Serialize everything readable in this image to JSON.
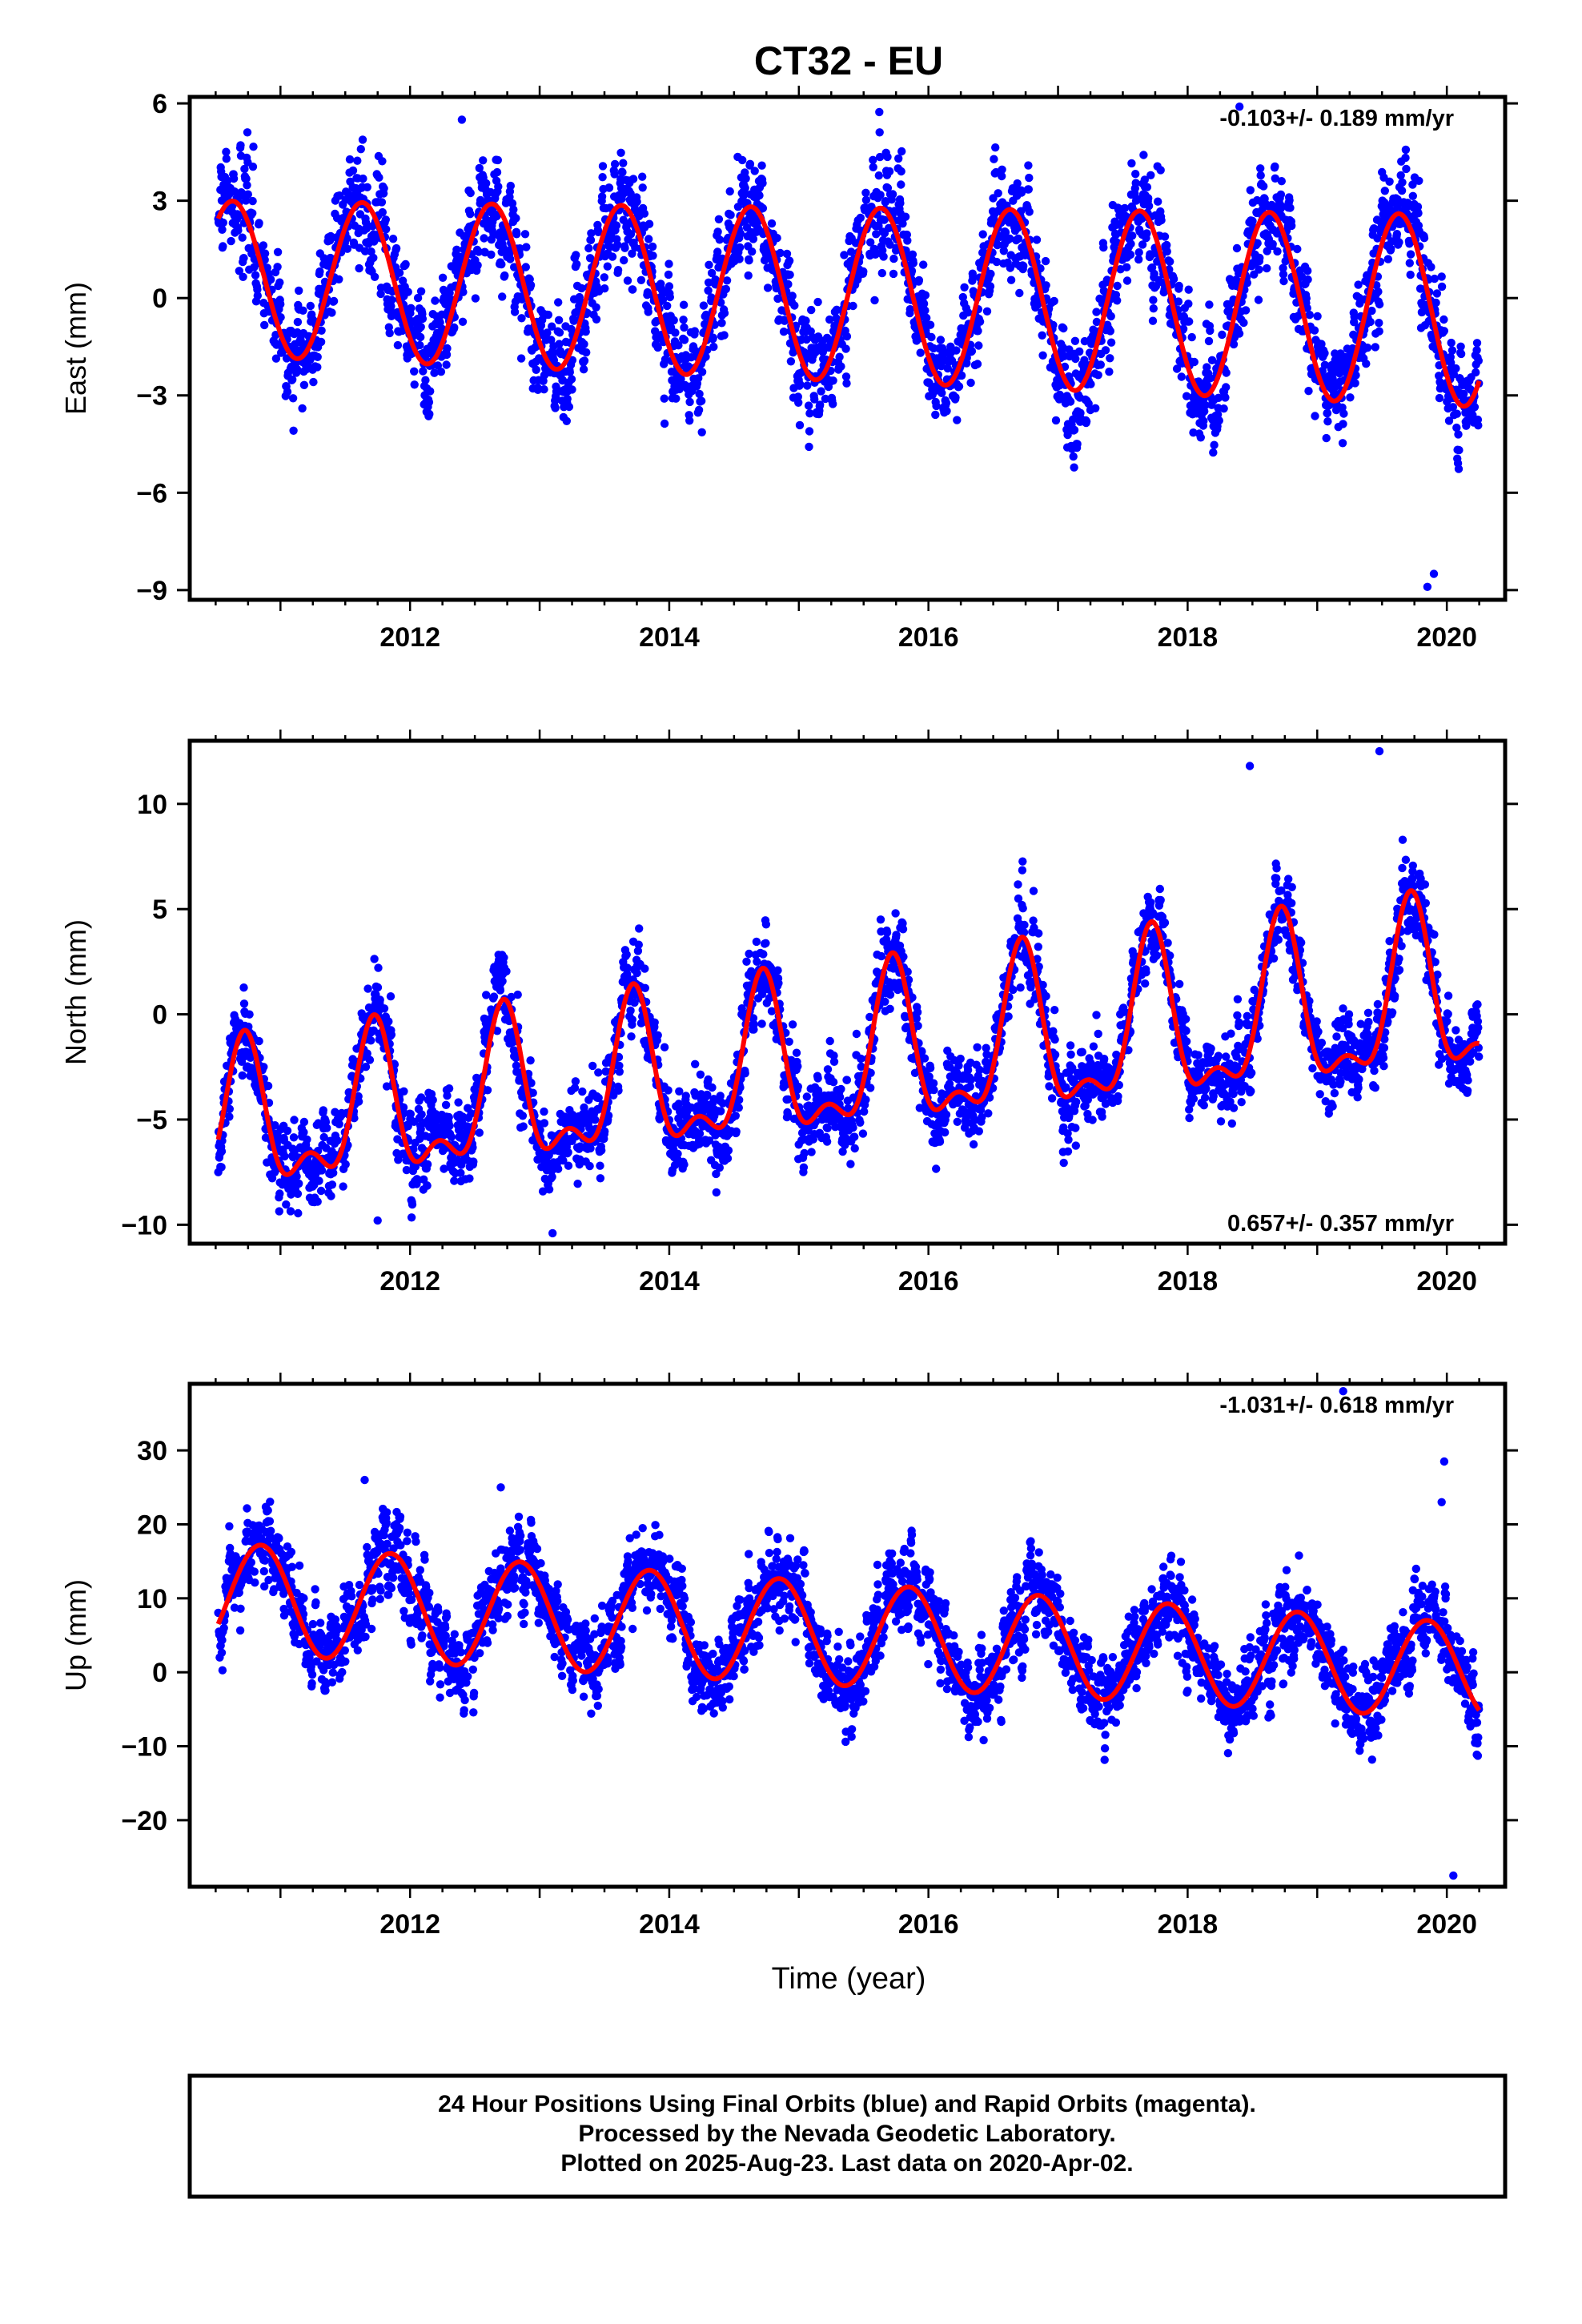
{
  "title": "CT32 - EU",
  "xlabel": "Time (year)",
  "caption": [
    "24 Hour Positions Using Final Orbits (blue) and Rapid Orbits (magenta).",
    "Processed by the Nevada Geodetic Laboratory.",
    "Plotted on 2025-Aug-23. Last data on 2020-Apr-02."
  ],
  "colors": {
    "points": "#0000ff",
    "model": "#ff0000",
    "frame": "#000000"
  },
  "chart_data": [
    {
      "type": "scatter",
      "panel": "east",
      "ylabel": "East (mm)",
      "rate_text": "-0.103+/- 0.189 mm/yr",
      "rate_position": "top-right",
      "xlim": [
        2010.3,
        2020.45
      ],
      "ylim": [
        -9.3,
        6.2
      ],
      "yticks": [
        -9,
        -6,
        -3,
        0,
        3,
        6
      ],
      "ytick_labels": [
        "−9",
        "−6",
        "−3",
        "0",
        "3",
        "6"
      ],
      "xticks": [
        2012,
        2014,
        2016,
        2018,
        2020
      ],
      "xtick_labels": [
        "2012",
        "2014",
        "2016",
        "2018",
        "2020"
      ],
      "data_range": [
        2010.52,
        2020.25
      ],
      "model": {
        "offset": 0.15,
        "rate": -0.103,
        "amp": 2.65,
        "amp_trend": 0.06,
        "phase_year": 0.38,
        "amp2": 0.0,
        "phase2": 0.0,
        "offset_steps": []
      },
      "noise_sd": 1.0,
      "extremes": [
        [
          2019.85,
          -8.9
        ],
        [
          2019.9,
          -8.5
        ],
        [
          2018.4,
          5.9
        ],
        [
          2012.4,
          5.5
        ]
      ],
      "series": [
        {
          "values_described": "daily position estimates"
        },
        {
          "values_described": "seasonal model fit"
        }
      ]
    },
    {
      "type": "scatter",
      "panel": "north",
      "ylabel": "North (mm)",
      "rate_text": "0.657+/- 0.357 mm/yr",
      "rate_position": "bottom-right",
      "xlim": [
        2010.3,
        2020.45
      ],
      "ylim": [
        -10.9,
        13.0
      ],
      "yticks": [
        -10,
        -5,
        0,
        5,
        10
      ],
      "ytick_labels": [
        "−10",
        "−5",
        "0",
        "5",
        "10"
      ],
      "xticks": [
        2012,
        2014,
        2016,
        2018,
        2020
      ],
      "xtick_labels": [
        "2012",
        "2014",
        "2016",
        "2018",
        "2020"
      ],
      "data_range": [
        2010.52,
        2020.25
      ],
      "model": {
        "offset": -2.6,
        "rate": 0.657,
        "amp": 3.4,
        "amp_trend": 0.08,
        "phase_year": 0.47,
        "amp2": 1.6,
        "phase2": 0.1,
        "offset_steps": []
      },
      "noise_sd": 1.2,
      "extremes": [
        [
          2019.48,
          12.5
        ],
        [
          2018.48,
          11.8
        ],
        [
          2013.1,
          -10.4
        ],
        [
          2011.75,
          -9.8
        ]
      ],
      "series": [
        {
          "values_described": "daily position estimates"
        },
        {
          "values_described": "seasonal model fit"
        }
      ]
    },
    {
      "type": "scatter",
      "panel": "up",
      "ylabel": "Up (mm)",
      "rate_text": "-1.031+/- 0.618 mm/yr",
      "rate_position": "top-right",
      "xlim": [
        2010.3,
        2020.45
      ],
      "ylim": [
        -29,
        39
      ],
      "yticks": [
        -20,
        -10,
        0,
        10,
        20,
        30
      ],
      "ytick_labels": [
        "−20",
        "−10",
        "0",
        "10",
        "20",
        "30"
      ],
      "xticks": [
        2012,
        2014,
        2016,
        2018,
        2020
      ],
      "xtick_labels": [
        "2012",
        "2014",
        "2016",
        "2018",
        "2020"
      ],
      "data_range": [
        2010.52,
        2020.25
      ],
      "model": {
        "offset": 5.5,
        "rate": -1.031,
        "amp": 7.0,
        "amp_trend": -0.1,
        "phase_year": 0.6,
        "amp2": 0.0,
        "phase2": 0.0,
        "offset_steps": []
      },
      "noise_sd": 3.3,
      "extremes": [
        [
          2019.98,
          28.5
        ],
        [
          2019.96,
          23.0
        ],
        [
          2020.05,
          -27.5
        ],
        [
          2011.65,
          26.0
        ],
        [
          2012.7,
          25.0
        ],
        [
          2019.2,
          38.0
        ]
      ],
      "series": [
        {
          "values_described": "daily position estimates"
        },
        {
          "values_described": "seasonal model fit"
        }
      ]
    }
  ]
}
